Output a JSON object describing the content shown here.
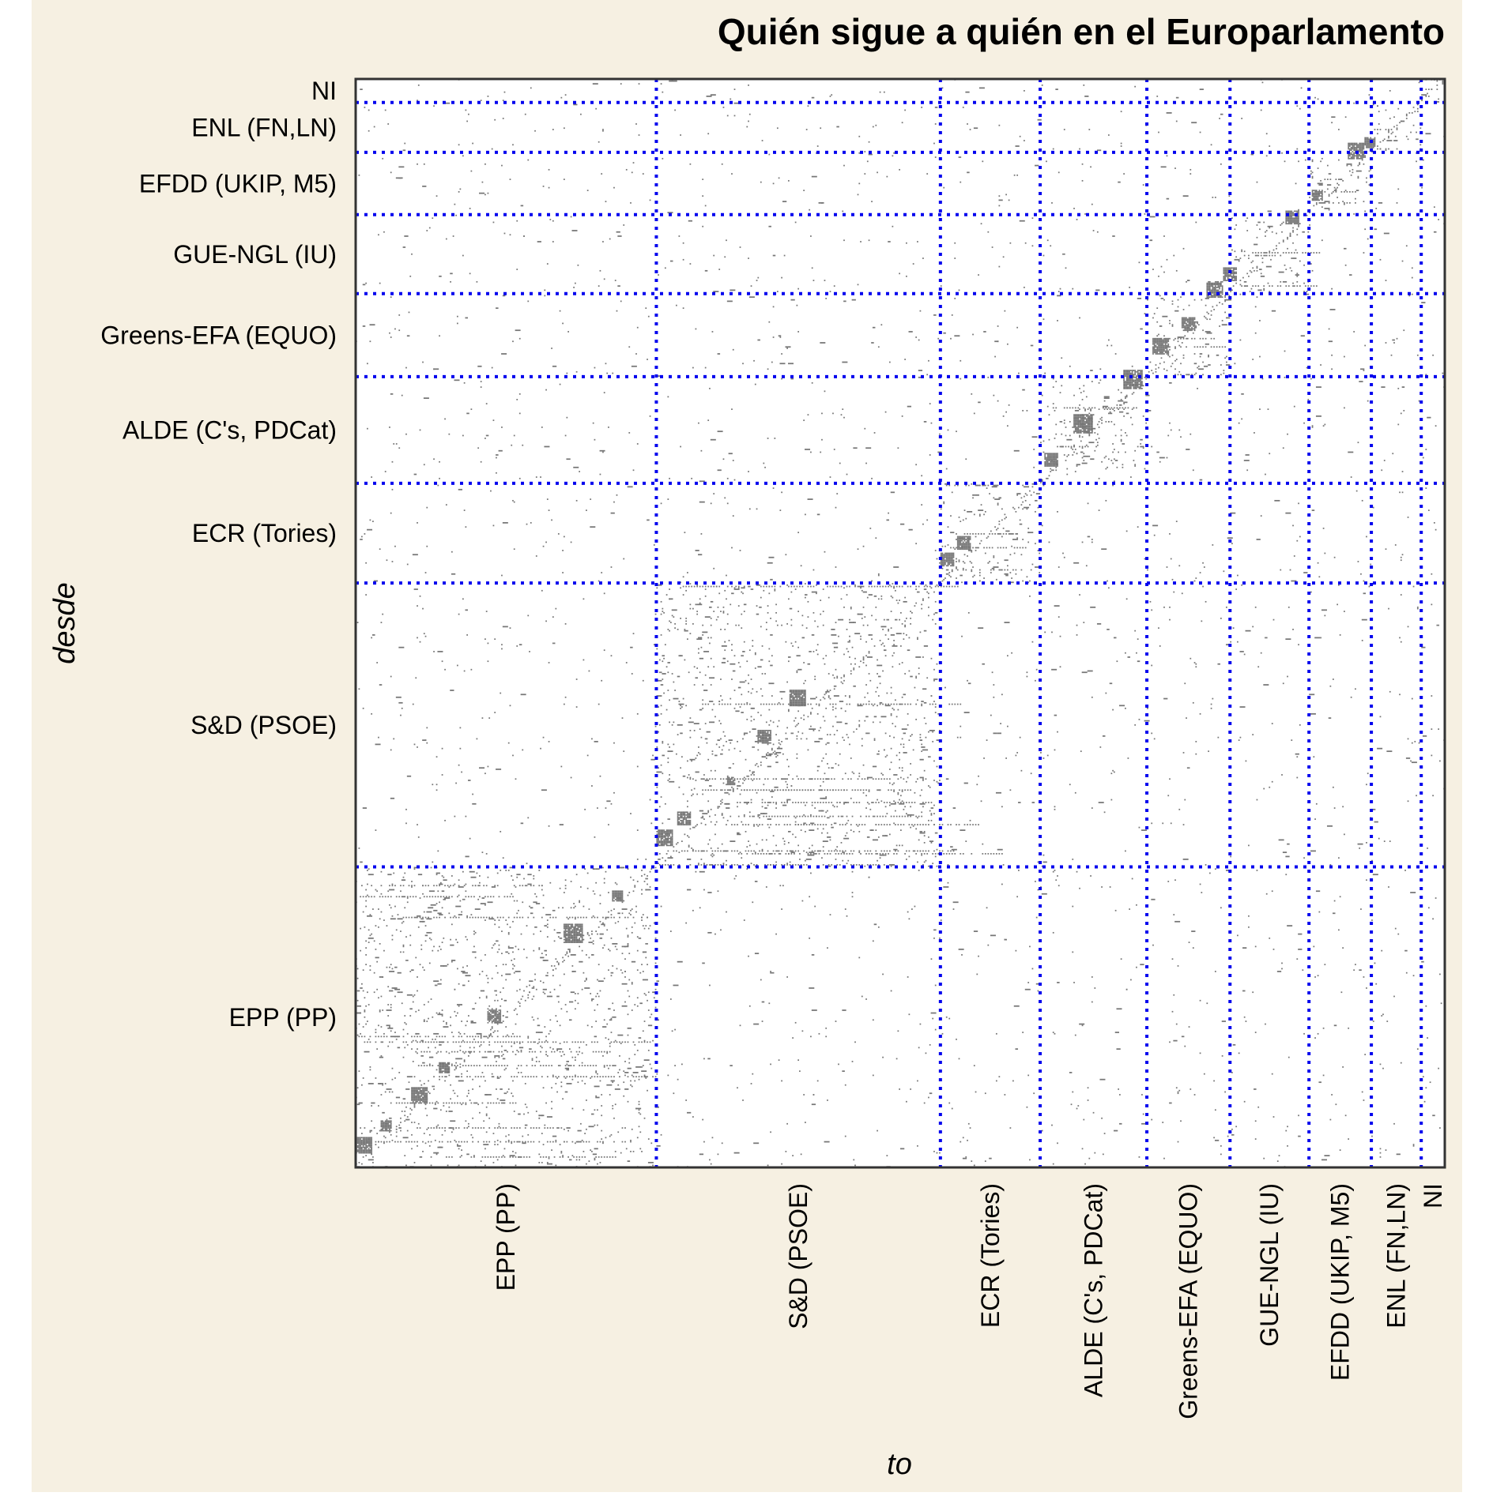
{
  "chart_data": {
    "type": "heatmap",
    "title": "Quién sigue a quién en el Europarlamento",
    "xlabel": "to",
    "ylabel": "desde",
    "groups": [
      {
        "label": "EPP (PP)",
        "size": 217
      },
      {
        "label": "S&D (PSOE)",
        "size": 205
      },
      {
        "label": "ECR (Tories)",
        "size": 72
      },
      {
        "label": "ALDE (C's, PDCat)",
        "size": 77
      },
      {
        "label": "Greens-EFA (EQUO)",
        "size": 60
      },
      {
        "label": "GUE-NGL (IU)",
        "size": 57
      },
      {
        "label": "EFDD (UKIP, M5)",
        "size": 45
      },
      {
        "label": "ENL (FN,LN)",
        "size": 36
      },
      {
        "label": "NI",
        "size": 17
      }
    ],
    "grid": true,
    "legend": "none",
    "colors": {
      "background": "#f6f0e2",
      "plot_background": "#ffffff",
      "cell": "#767676",
      "divider": "#0000ee",
      "frame": "#333333",
      "text": "#000000"
    }
  }
}
